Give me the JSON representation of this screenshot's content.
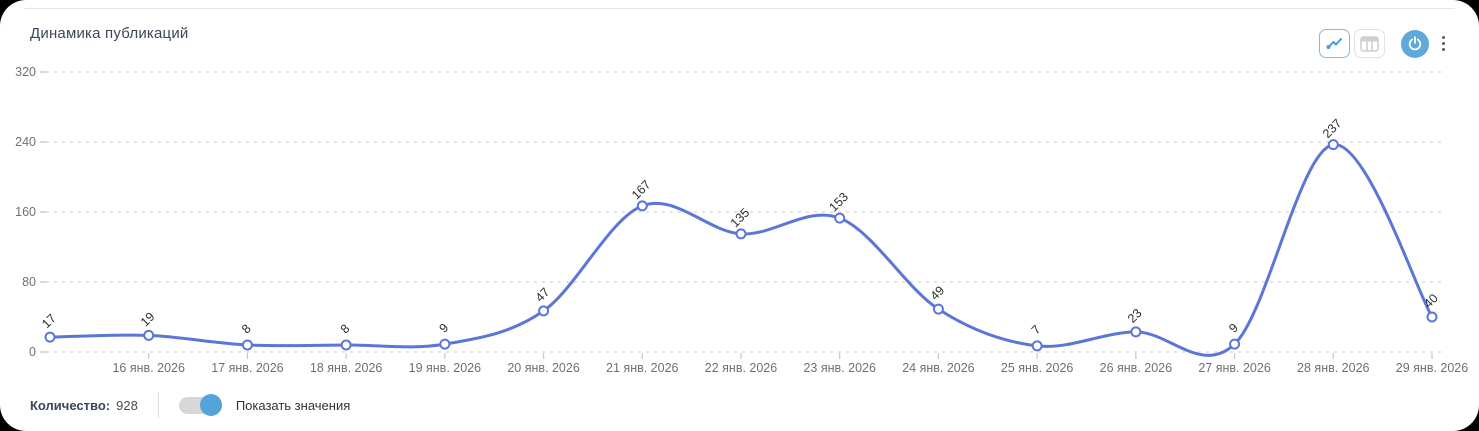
{
  "header": {
    "title": "Динамика публикаций"
  },
  "toolbar": {
    "line_view": {
      "icon": "line-chart-icon",
      "active": true
    },
    "table_view": {
      "icon": "table-icon",
      "active": false
    },
    "power": {
      "icon": "power-icon"
    },
    "menu": {
      "icon": "kebab-menu-icon"
    }
  },
  "footer": {
    "count_label": "Количество:",
    "count_value": "928",
    "toggle_label": "Показать значения",
    "toggle_state": "on"
  },
  "colors": {
    "line": "#5b76d7",
    "marker_fill": "#ffffff",
    "accent_blue": "#54a4da",
    "grid": "#dcdcdc",
    "tick": "#c8c8c8",
    "axis_text": "#6e7079",
    "value_label_text": "#2e2e2e",
    "title_text": "#3b4656"
  },
  "chart_data": {
    "type": "line",
    "smooth": true,
    "title": "Динамика публикаций",
    "categories": [
      "",
      "16 янв. 2026",
      "17 янв. 2026",
      "18 янв. 2026",
      "19 янв. 2026",
      "20 янв. 2026",
      "21 янв. 2026",
      "22 янв. 2026",
      "23 янв. 2026",
      "24 янв. 2026",
      "25 янв. 2026",
      "26 янв. 2026",
      "27 янв. 2026",
      "28 янв. 2026",
      "29 янв. 2026"
    ],
    "values": [
      17,
      19,
      8,
      8,
      9,
      47,
      167,
      135,
      153,
      49,
      7,
      23,
      9,
      237,
      40
    ],
    "total": 928,
    "ylim": [
      0,
      320
    ],
    "yticks": [
      0,
      80,
      160,
      240,
      320
    ],
    "grid": "horizontal dashed",
    "legend": "none",
    "marker": "open-circle",
    "value_labels": "rotated -45"
  }
}
